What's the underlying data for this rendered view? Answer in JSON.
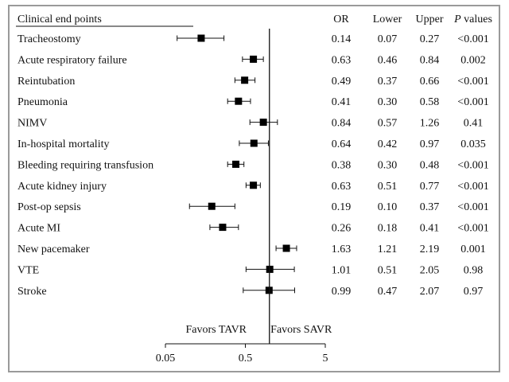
{
  "chart_data": {
    "type": "forest",
    "x_scale": "log",
    "xlim": [
      0.05,
      5
    ],
    "reference_line": 1,
    "x_ticks": [
      {
        "value": 0.05,
        "label": "0.05"
      },
      {
        "value": 0.5,
        "label": "0.5"
      },
      {
        "value": 5,
        "label": "5"
      }
    ],
    "left_label": "Favors TAVR",
    "right_label": "Favors SAVR",
    "headers": {
      "endpoint": "Clinical end points",
      "or": "OR",
      "lower": "Lower",
      "upper": "Upper",
      "p_prefix": "P",
      "p_suffix": " values"
    },
    "rows": [
      {
        "label": "Tracheostomy",
        "or": 0.14,
        "lower": 0.07,
        "upper": 0.27,
        "or_text": "0.14",
        "lower_text": "0.07",
        "upper_text": "0.27",
        "p": "<0.001"
      },
      {
        "label": "Acute respiratory failure",
        "or": 0.63,
        "lower": 0.46,
        "upper": 0.84,
        "or_text": "0.63",
        "lower_text": "0.46",
        "upper_text": "0.84",
        "p": "0.002"
      },
      {
        "label": "Reintubation",
        "or": 0.49,
        "lower": 0.37,
        "upper": 0.66,
        "or_text": "0.49",
        "lower_text": "0.37",
        "upper_text": "0.66",
        "p": "<0.001"
      },
      {
        "label": "Pneumonia",
        "or": 0.41,
        "lower": 0.3,
        "upper": 0.58,
        "or_text": "0.41",
        "lower_text": "0.30",
        "upper_text": "0.58",
        "p": "<0.001"
      },
      {
        "label": "NIMV",
        "or": 0.84,
        "lower": 0.57,
        "upper": 1.26,
        "or_text": "0.84",
        "lower_text": "0.57",
        "upper_text": "1.26",
        "p": "0.41"
      },
      {
        "label": "In-hospital mortality",
        "or": 0.64,
        "lower": 0.42,
        "upper": 0.97,
        "or_text": "0.64",
        "lower_text": "0.42",
        "upper_text": "0.97",
        "p": "0.035"
      },
      {
        "label": "Bleeding requiring transfusion",
        "or": 0.38,
        "lower": 0.3,
        "upper": 0.48,
        "or_text": "0.38",
        "lower_text": "0.30",
        "upper_text": "0.48",
        "p": "<0.001"
      },
      {
        "label": "Acute kidney injury",
        "or": 0.63,
        "lower": 0.51,
        "upper": 0.77,
        "or_text": "0.63",
        "lower_text": "0.51",
        "upper_text": "0.77",
        "p": "<0.001"
      },
      {
        "label": "Post-op sepsis",
        "or": 0.19,
        "lower": 0.1,
        "upper": 0.37,
        "or_text": "0.19",
        "lower_text": "0.10",
        "upper_text": "0.37",
        "p": "<0.001"
      },
      {
        "label": "Acute MI",
        "or": 0.26,
        "lower": 0.18,
        "upper": 0.41,
        "or_text": "0.26",
        "lower_text": "0.18",
        "upper_text": "0.41",
        "p": "<0.001"
      },
      {
        "label": "New pacemaker",
        "or": 1.63,
        "lower": 1.21,
        "upper": 2.19,
        "or_text": "1.63",
        "lower_text": "1.21",
        "upper_text": "2.19",
        "p": "0.001"
      },
      {
        "label": "VTE",
        "or": 1.01,
        "lower": 0.51,
        "upper": 2.05,
        "or_text": "1.01",
        "lower_text": "0.51",
        "upper_text": "2.05",
        "p": "0.98"
      },
      {
        "label": "Stroke",
        "or": 0.99,
        "lower": 0.47,
        "upper": 2.07,
        "or_text": "0.99",
        "lower_text": "0.47",
        "upper_text": "2.07",
        "p": "0.97"
      }
    ]
  }
}
